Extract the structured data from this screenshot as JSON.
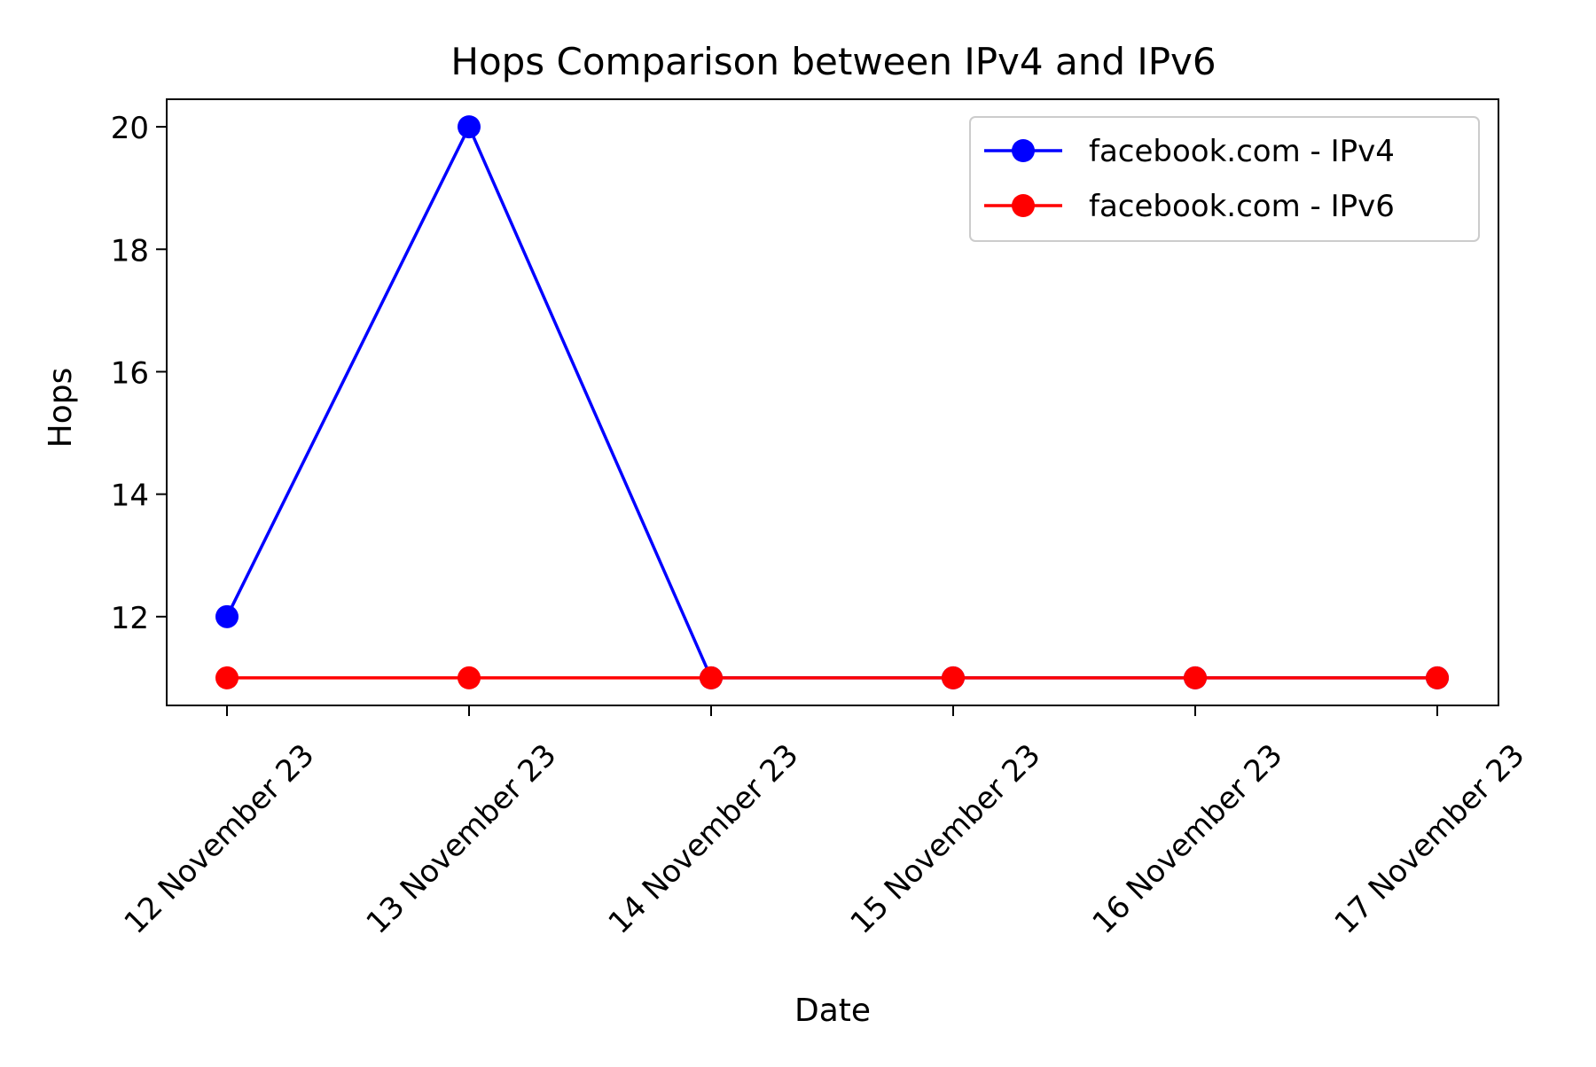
{
  "chart_data": {
    "type": "line",
    "title": "Hops Comparison between IPv4 and IPv6",
    "xlabel": "Date",
    "ylabel": "Hops",
    "categories": [
      "12 November 23",
      "13 November 23",
      "14 November 23",
      "15 November 23",
      "16 November 23",
      "17 November 23"
    ],
    "series": [
      {
        "name": "facebook.com - IPv4",
        "color": "#0000ff",
        "values": [
          12,
          20,
          11,
          11,
          11,
          11
        ]
      },
      {
        "name": "facebook.com - IPv6",
        "color": "#ff0000",
        "values": [
          11,
          11,
          11,
          11,
          11,
          11
        ]
      }
    ],
    "yticks": [
      12,
      14,
      16,
      18,
      20
    ],
    "ylim": [
      10.55,
      20.45
    ],
    "grid": false,
    "legend_position": "top-right"
  }
}
